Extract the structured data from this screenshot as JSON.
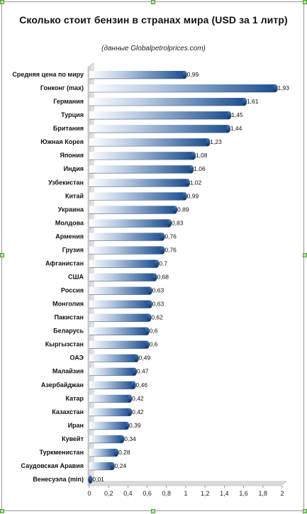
{
  "chart_data": {
    "type": "bar",
    "orientation": "horizontal",
    "title": "Сколько стоит бензин в странах мира (USD за 1 литр)",
    "subtitle": "(данные Globalpetrolprices.com)",
    "categories": [
      "Средняя цена по миру",
      "Гонконг (max)",
      "Германия",
      "Турция",
      "Британия",
      "Южная Корея",
      "Япония",
      "Индия",
      "Узбекистан",
      "Китай",
      "Украина",
      "Молдова",
      "Армения",
      "Грузия",
      "Афганистан",
      "США",
      "Россия",
      "Монголия",
      "Пакистан",
      "Беларусь",
      "Кыргызстан",
      "ОАЭ",
      "Малайзия",
      "Азербайджан",
      "Катар",
      "Казахстан",
      "Иран",
      "Кувейт",
      "Туркменистан",
      "Саудовская Аравия",
      "Венесуэла (min)"
    ],
    "values": [
      0.99,
      1.93,
      1.61,
      1.45,
      1.44,
      1.23,
      1.08,
      1.06,
      1.02,
      0.99,
      0.89,
      0.83,
      0.76,
      0.76,
      0.7,
      0.68,
      0.63,
      0.63,
      0.62,
      0.6,
      0.6,
      0.49,
      0.47,
      0.46,
      0.42,
      0.42,
      0.39,
      0.34,
      0.28,
      0.24,
      0.01
    ],
    "value_labels": [
      "0,99",
      "1,93",
      "1,61",
      "1,45",
      "1,44",
      "1,23",
      "1,08",
      "1,06",
      "1,02",
      "0,99",
      "0,89",
      "0,83",
      "0,76",
      "0,76",
      "0,7",
      "0,68",
      "0,63",
      "0,63",
      "0,62",
      "0,6",
      "0,6",
      "0,49",
      "0,47",
      "0,46",
      "0,42",
      "0,42",
      "0,39",
      "0,34",
      "0,28",
      "0,24",
      "0,01"
    ],
    "xlim": [
      0,
      2
    ],
    "xticks": [
      0,
      0.2,
      0.4,
      0.6,
      0.8,
      1,
      1.2,
      1.4,
      1.6,
      1.8,
      2
    ],
    "xtick_labels": [
      "0",
      "0,2",
      "0,4",
      "0,6",
      "0,8",
      "1",
      "1,2",
      "1,4",
      "1,6",
      "1,8",
      "2"
    ],
    "xlabel": "",
    "ylabel": "",
    "grid": false,
    "legend": "none",
    "bar_color": "#1d4f8f",
    "bar_highlight": "#ffffff"
  }
}
